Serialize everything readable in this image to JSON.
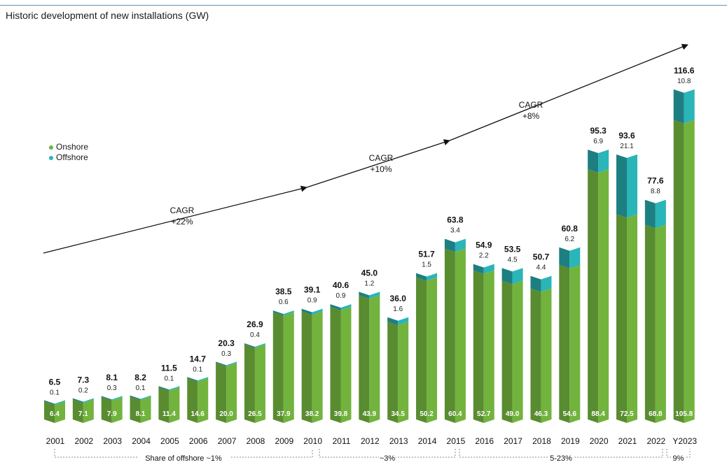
{
  "chart_data": {
    "type": "bar",
    "stacked": true,
    "title": "Historic development of new installations (GW)",
    "categories": [
      "2001",
      "2002",
      "2003",
      "2004",
      "2005",
      "2006",
      "2007",
      "2008",
      "2009",
      "2010",
      "2011",
      "2012",
      "2013",
      "2014",
      "2015",
      "2016",
      "2017",
      "2018",
      "2019",
      "2020",
      "2021",
      "2022",
      "Y2023"
    ],
    "series": [
      {
        "name": "Onshore",
        "color": "#72b33e",
        "values": [
          6.4,
          7.1,
          7.9,
          8.1,
          11.4,
          14.6,
          20.0,
          26.5,
          37.9,
          38.2,
          39.8,
          43.9,
          34.5,
          50.2,
          60.4,
          52.7,
          49.0,
          46.3,
          54.6,
          88.4,
          72.5,
          68.8,
          105.8
        ]
      },
      {
        "name": "Offshore",
        "color": "#2ab5b8",
        "values": [
          0.1,
          0.2,
          0.3,
          0.1,
          0.1,
          0.1,
          0.3,
          0.4,
          0.6,
          0.9,
          0.9,
          1.2,
          1.6,
          1.5,
          3.4,
          2.2,
          4.5,
          4.4,
          6.2,
          6.9,
          21.1,
          8.8,
          10.8
        ]
      }
    ],
    "onshore_labels": [
      "6.4",
      "7.1",
      "7.9",
      "8.1",
      "11.4",
      "14.6",
      "20.0",
      "26.5",
      "37.9",
      "38.2",
      "39.8",
      "43.9",
      "34.5",
      "50.2",
      "60.4",
      "52.7",
      "49.0",
      "46.3",
      "54.6",
      "88.4",
      "72.5",
      "68.8",
      "105.8"
    ],
    "offshore_labels": [
      "0.1",
      "0.2",
      "0.3",
      "0.1",
      "0.1",
      "0.1",
      "0.3",
      "0.4",
      "0.6",
      "0.9",
      "0.9",
      "1.2",
      "1.6",
      "1.5",
      "3.4",
      "2.2",
      "4.5",
      "4.4",
      "6.2",
      "6.9",
      "21.1",
      "8.8",
      "10.8"
    ],
    "total_labels": [
      "6.5",
      "7.3",
      "8.1",
      "8.2",
      "11.5",
      "14.7",
      "20.3",
      "26.9",
      "38.5",
      "39.1",
      "40.6",
      "45.0",
      "36.0",
      "51.7",
      "63.8",
      "54.9",
      "53.5",
      "50.7",
      "60.8",
      "95.3",
      "93.6",
      "77.6",
      "116.6"
    ],
    "ylim": [
      0,
      120
    ],
    "legend_position": "left",
    "cagr": [
      {
        "line1": "CAGR",
        "line2": "+22%"
      },
      {
        "line1": "CAGR",
        "line2": "+10%"
      },
      {
        "line1": "CAGR",
        "line2": "+8%"
      }
    ],
    "share_brackets": [
      {
        "label": "Share of offshore ~1%"
      },
      {
        "label": "~3%"
      },
      {
        "label": "5-23%"
      },
      {
        "label": "9%"
      }
    ]
  }
}
